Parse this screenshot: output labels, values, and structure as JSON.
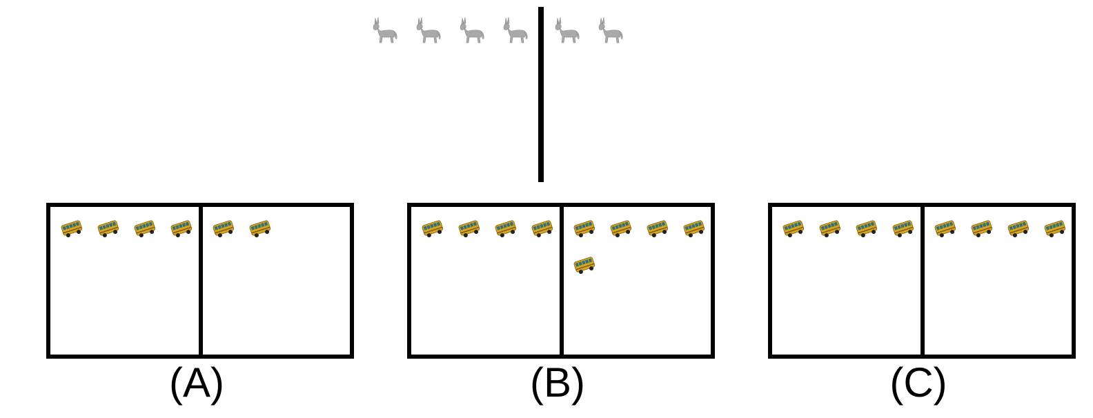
{
  "top": {
    "animal": "donkey-icon",
    "left_count": 4,
    "right_count": 2
  },
  "options": [
    {
      "label": "(A)",
      "left_count": 4,
      "right_count": 2
    },
    {
      "label": "(B)",
      "left_count": 4,
      "right_count": 5
    },
    {
      "label": "(C)",
      "left_count": 4,
      "right_count": 4
    }
  ],
  "colors": {
    "donkey": "#a9a9a9",
    "donkey_dark": "#8a8a8a",
    "bus_body": "#d9a520",
    "bus_window": "#2f6f7a",
    "bus_trim": "#7a5a10",
    "frame": "#000000"
  }
}
